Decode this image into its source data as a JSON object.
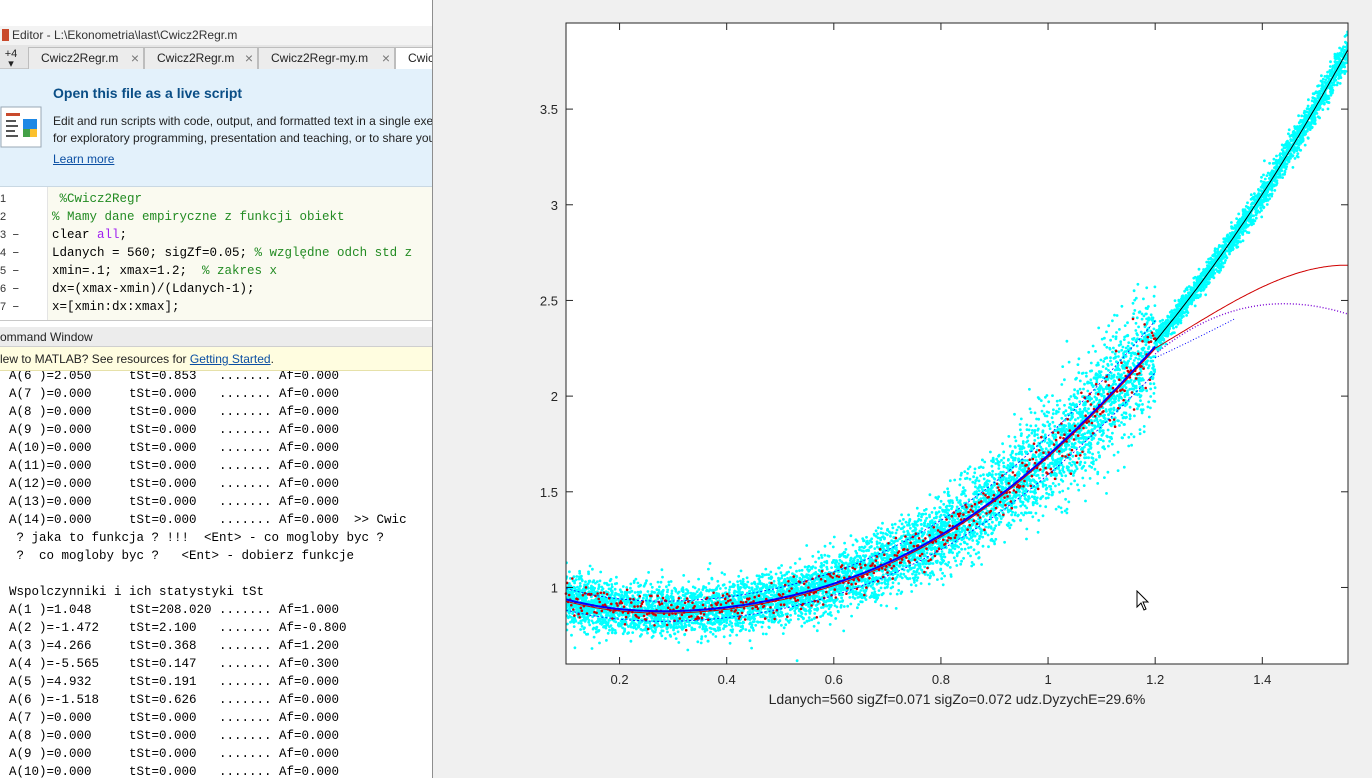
{
  "editor_window": {
    "title": "Editor - L:\\Ekonometria\\last\\Cwicz2Regr.m",
    "overflow_label": "+4",
    "tabs": [
      {
        "label": "Cwicz2Regr.m"
      },
      {
        "label": "Cwicz2Regr.m"
      },
      {
        "label": "Cwicz2Regr-my.m"
      },
      {
        "label": "Cwic"
      }
    ],
    "close_glyph": "×"
  },
  "live_script_banner": {
    "title": "Open this file as a live script",
    "line1": "Edit and run scripts with code, output, and formatted text in a single exe",
    "line2": "for exploratory programming, presentation and teaching, or to share you",
    "link": "Learn more"
  },
  "code_lines": [
    {
      "num": "1",
      "dash": "",
      "text": " %Cwicz2Regr",
      "kind": "comment"
    },
    {
      "num": "2",
      "dash": "",
      "text": "% Mamy dane empiryczne z funkcji obiekt",
      "kind": "comment"
    },
    {
      "num": "3",
      "dash": "–",
      "text": "clear ",
      "extra": "all",
      "tail": ";",
      "kind": "clear"
    },
    {
      "num": "4",
      "dash": "–",
      "text": "Ldanych = 560; sigZf=0.05; ",
      "extra": "% względne odch std z",
      "kind": "mixed"
    },
    {
      "num": "5",
      "dash": "–",
      "text": "xmin=.1; xmax=1.2;  ",
      "extra": "% zakres x",
      "kind": "mixed"
    },
    {
      "num": "6",
      "dash": "–",
      "text": "dx=(xmax-xmin)/(Ldanych-1);",
      "kind": "code"
    },
    {
      "num": "7",
      "dash": "–",
      "text": "x=[xmin:dx:xmax];",
      "kind": "code"
    }
  ],
  "command_window": {
    "header": "ommand Window",
    "notice_prefix": "lew to MATLAB? See resources for ",
    "notice_link": "Getting Started",
    "notice_suffix": "."
  },
  "cw_output": [
    "A(6 )=2.050     tSt=0.853   ....... Af=0.000",
    "A(7 )=0.000     tSt=0.000   ....... Af=0.000",
    "A(8 )=0.000     tSt=0.000   ....... Af=0.000",
    "A(9 )=0.000     tSt=0.000   ....... Af=0.000",
    "A(10)=0.000     tSt=0.000   ....... Af=0.000",
    "A(11)=0.000     tSt=0.000   ....... Af=0.000",
    "A(12)=0.000     tSt=0.000   ....... Af=0.000",
    "A(13)=0.000     tSt=0.000   ....... Af=0.000",
    "A(14)=0.000     tSt=0.000   ....... Af=0.000  >> Cwic",
    " ? jaka to funkcja ? !!!  <Ent> - co mogloby byc ?",
    " ?  co mogloby byc ?   <Ent> - dobierz funkcje",
    "",
    "Wspolczynniki i ich statystyki tSt",
    "A(1 )=1.048     tSt=208.020 ....... Af=1.000",
    "A(2 )=-1.472    tSt=2.100   ....... Af=-0.800",
    "A(3 )=4.266     tSt=0.368   ....... Af=1.200",
    "A(4 )=-5.565    tSt=0.147   ....... Af=0.300",
    "A(5 )=4.932     tSt=0.191   ....... Af=0.000",
    "A(6 )=-1.518    tSt=0.626   ....... Af=0.000",
    "A(7 )=0.000     tSt=0.000   ....... Af=0.000",
    "A(8 )=0.000     tSt=0.000   ....... Af=0.000",
    "A(9 )=0.000     tSt=0.000   ....... Af=0.000",
    "A(10)=0.000     tSt=0.000   ....... Af=0.000"
  ],
  "chart_data": {
    "type": "scatter",
    "xlabel": "Ldanych=560 sigZf=0.071 sigZo=0.072 udz.DyzychE=29.6%",
    "xlim": [
      0.1,
      1.56
    ],
    "ylim": [
      0.6,
      3.95
    ],
    "xticks": [
      "0.2",
      "0.4",
      "0.6",
      "0.8",
      "1",
      "1.2",
      "1.4"
    ],
    "yticks": [
      "1",
      "1.5",
      "2",
      "2.5",
      "3",
      "3.5"
    ],
    "grid": false,
    "series": [
      {
        "color": "#00ffff",
        "marker": "dots",
        "x_range": [
          0.1,
          1.56
        ]
      },
      {
        "color": "#d00000",
        "marker": "dots",
        "x_range": [
          0.1,
          1.2
        ]
      },
      {
        "color": "#0000ff",
        "marker": "line",
        "x_range": [
          0.1,
          1.2
        ]
      },
      {
        "color": "#d00000",
        "marker": "line",
        "x_range": [
          1.2,
          1.56
        ]
      },
      {
        "color": "#000000",
        "marker": "line",
        "x_range": [
          1.2,
          1.56
        ]
      },
      {
        "color": "#7b00d4",
        "marker": "dotted",
        "x_range": [
          1.2,
          1.56
        ]
      }
    ],
    "colors": {
      "cyan": "#00ffff",
      "red": "#d00000",
      "blue": "#0000ff",
      "black": "#000000",
      "purple": "#7b00d4"
    }
  }
}
